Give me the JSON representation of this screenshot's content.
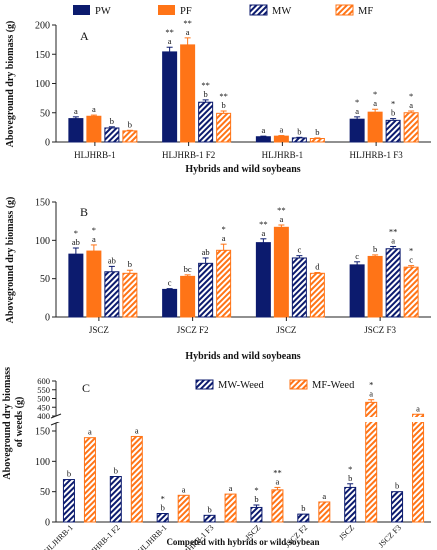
{
  "colors": {
    "PW": "#0c1b6e",
    "PF": "#ff7417",
    "MW": "#0c1b6e",
    "MF": "#ff7417"
  },
  "chart_data": [
    {
      "type": "bar",
      "panel_label": "A",
      "ylabel": "Aboveground dry biomass (g)",
      "xlabel": "Hybrids and wild soybeans",
      "ylim": [
        0,
        200
      ],
      "yticks": [
        "0",
        "50",
        "100",
        "150",
        "200"
      ],
      "categories": [
        "HLJHRB-1",
        "HLJHRB-1 F2",
        "HLJHRB-1",
        "HLJHRB-1 F3"
      ],
      "legend": [
        "PW",
        "PF",
        "MW",
        "MF"
      ],
      "legend_position": "top",
      "series": [
        {
          "name": "PW",
          "pattern": "solid",
          "values": [
            40,
            154,
            9,
            39
          ],
          "errors": [
            3,
            8,
            1,
            4
          ],
          "letters": [
            "a",
            "a",
            "a",
            "a"
          ],
          "stars": [
            "",
            "**",
            "",
            "*"
          ]
        },
        {
          "name": "PF",
          "pattern": "solid",
          "values": [
            44,
            166,
            10,
            51
          ],
          "errors": [
            2,
            12,
            1,
            5
          ],
          "letters": [
            "a",
            "a",
            "a",
            "a"
          ],
          "stars": [
            "",
            "**",
            "",
            "*"
          ]
        },
        {
          "name": "MW",
          "pattern": "hatch",
          "values": [
            24,
            68,
            7,
            37
          ],
          "errors": [
            2,
            4,
            1,
            3
          ],
          "letters": [
            "b",
            "b",
            "b",
            "b"
          ],
          "stars": [
            "",
            "**",
            "",
            "*"
          ]
        },
        {
          "name": "MF",
          "pattern": "hatch",
          "values": [
            19,
            49,
            6,
            50
          ],
          "errors": [
            1,
            4,
            1,
            3
          ],
          "letters": [
            "b",
            "b",
            "b",
            "a"
          ],
          "stars": [
            "",
            "**",
            "",
            "*"
          ]
        }
      ]
    },
    {
      "type": "bar",
      "panel_label": "B",
      "ylabel": "Aboveground dry biomass (g)",
      "xlabel": "Hybrids and wild soybeans",
      "ylim": [
        0,
        150
      ],
      "yticks": [
        "0",
        "50",
        "100",
        "150"
      ],
      "categories": [
        "JSCZ",
        "JSCZ F2",
        "JSCZ",
        "JSCZ F3"
      ],
      "series": [
        {
          "name": "PW",
          "pattern": "solid",
          "values": [
            82,
            36,
            97,
            68
          ],
          "errors": [
            8,
            1,
            5,
            4
          ],
          "letters": [
            "ab",
            "c",
            "a",
            "c"
          ],
          "stars": [
            "*",
            "",
            "**",
            ""
          ]
        },
        {
          "name": "PF",
          "pattern": "solid",
          "values": [
            86,
            53,
            117,
            79
          ],
          "errors": [
            8,
            2,
            3,
            2
          ],
          "letters": [
            "a",
            "bc",
            "a",
            "b"
          ],
          "stars": [
            "*",
            "",
            "**",
            ""
          ]
        },
        {
          "name": "MW",
          "pattern": "hatch",
          "values": [
            59,
            70,
            77,
            89
          ],
          "errors": [
            7,
            7,
            3,
            3
          ],
          "letters": [
            "ab",
            "ab",
            "c",
            "a"
          ],
          "stars": [
            "",
            "",
            "",
            "**"
          ]
        },
        {
          "name": "MF",
          "pattern": "hatch",
          "values": [
            57,
            87,
            57,
            65
          ],
          "errors": [
            4,
            8,
            1,
            2
          ],
          "letters": [
            "b",
            "a",
            "d",
            "c"
          ],
          "stars": [
            "",
            "*",
            "",
            "*"
          ]
        }
      ]
    },
    {
      "type": "bar",
      "panel_label": "C",
      "ylabel": "Aboveground dry biomass of weeds (g)",
      "xlabel": "Competed with hybrids or wild soybean",
      "broken_axis": true,
      "ylim_lower": [
        0,
        150
      ],
      "ylim_upper": [
        400,
        600
      ],
      "yticks_lower": [
        "0",
        "50",
        "100",
        "150"
      ],
      "yticks_upper": [
        "400",
        "450",
        "500",
        "550",
        "600"
      ],
      "categories": [
        "HLJHRB-1",
        "HLJHRB-1 F2",
        "HLJHRB-1",
        "HLJHRB-1 F3",
        "JSCZ",
        "JSCZ F2",
        "JSCZ",
        "JSCZ F3"
      ],
      "legend": [
        "MW-Weed",
        "MF-Weed"
      ],
      "legend_position": "top",
      "series": [
        {
          "name": "MW-Weed",
          "pattern": "hatch",
          "values": [
            70,
            75,
            14,
            11,
            24,
            13,
            57,
            50
          ],
          "errors": [
            0,
            0,
            0,
            0,
            4,
            0,
            6,
            0
          ],
          "letters": [
            "b",
            "b",
            "b",
            "b",
            "b",
            "b",
            "b",
            "b"
          ],
          "stars": [
            "",
            "",
            "*",
            "",
            "*",
            "",
            "*",
            ""
          ]
        },
        {
          "name": "MF-Weed",
          "pattern": "hatch",
          "values": [
            139,
            141,
            44,
            46,
            53,
            33,
            478,
            410
          ],
          "errors": [
            0,
            0,
            0,
            0,
            4,
            0,
            15,
            0
          ],
          "letters": [
            "a",
            "a",
            "a",
            "a",
            "a",
            "a",
            "a",
            "a"
          ],
          "stars": [
            "",
            "",
            "",
            "",
            "**",
            "",
            "*",
            ""
          ]
        }
      ]
    }
  ]
}
